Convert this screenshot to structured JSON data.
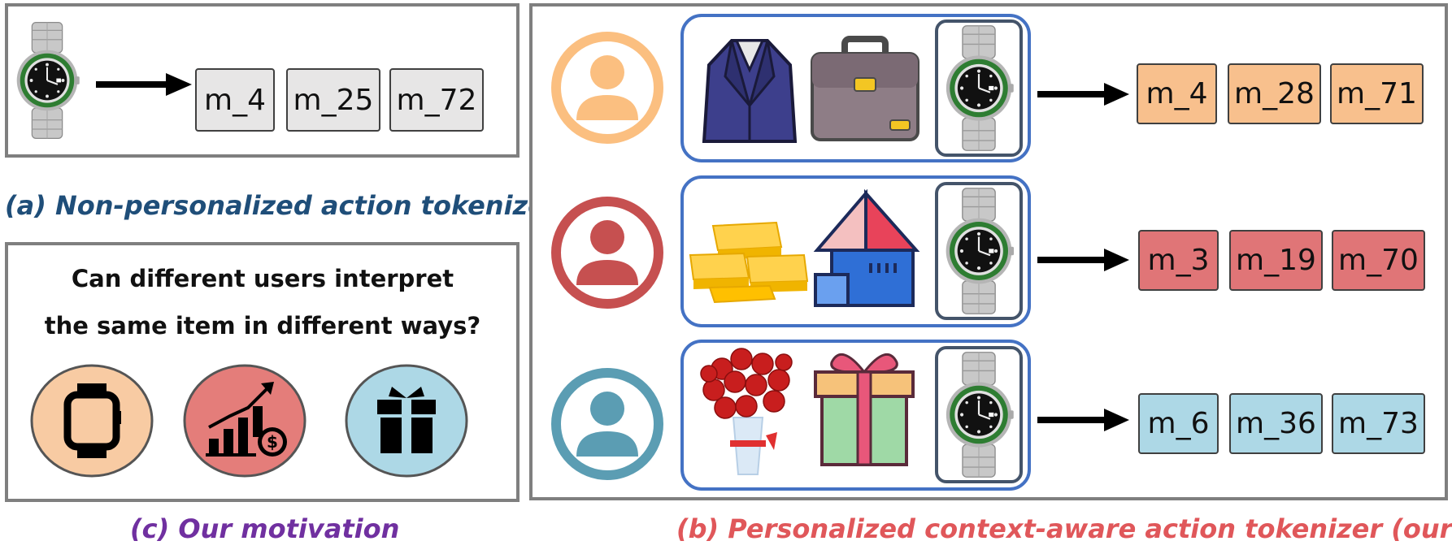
{
  "panel_a": {
    "tokens": [
      "m_4",
      "m_25",
      "m_72"
    ],
    "caption": "(a) Non-personalized action tokenizer",
    "caption_color": "#1f4e79"
  },
  "panel_c": {
    "question_line1": "Can different users interpret",
    "question_line2": "the same item in different ways?",
    "caption": "(c) Our motivation",
    "caption_color": "#7030a0",
    "icons": [
      {
        "icon": "smartwatch-icon",
        "bg": "#f8cba3"
      },
      {
        "icon": "growth-chart-dollar-icon",
        "bg": "#e47d7a"
      },
      {
        "icon": "gift-icon",
        "bg": "#add8e6"
      }
    ]
  },
  "panel_b": {
    "caption": "(b) Personalized context-aware action tokenizer (ours)",
    "caption_color": "#e0575a",
    "rows": [
      {
        "user_color": "#fbbf80",
        "context_icons": [
          "suit-jacket-icon",
          "briefcase-icon",
          "watch-icon"
        ],
        "tokens": [
          "m_4",
          "m_28",
          "m_71"
        ],
        "token_bg": "#f8c08d"
      },
      {
        "user_color": "#c65050",
        "context_icons": [
          "gold-bars-icon",
          "house-icon",
          "watch-icon"
        ],
        "tokens": [
          "m_3",
          "m_19",
          "m_70"
        ],
        "token_bg": "#e07577"
      },
      {
        "user_color": "#5b9db3",
        "context_icons": [
          "flower-bouquet-icon",
          "gift-box-icon",
          "watch-icon"
        ],
        "tokens": [
          "m_6",
          "m_36",
          "m_73"
        ],
        "token_bg": "#add8e6"
      }
    ]
  }
}
